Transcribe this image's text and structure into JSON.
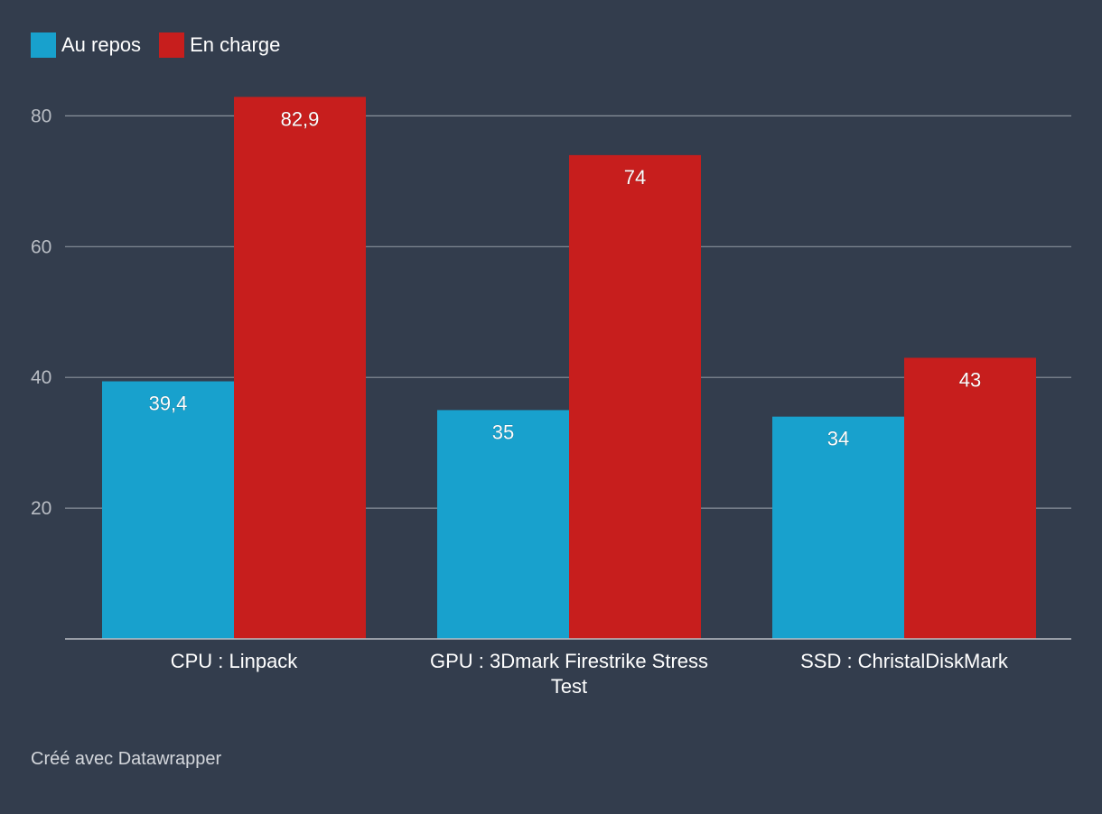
{
  "chart_data": {
    "type": "bar",
    "categories": [
      "CPU : Linpack",
      "GPU : 3Dmark Firestrike Stress Test",
      "SSD : ChristalDiskMark"
    ],
    "category_lines": [
      [
        "CPU : Linpack"
      ],
      [
        "GPU : 3Dmark Firestrike Stress",
        "Test"
      ],
      [
        "SSD : ChristalDiskMark"
      ]
    ],
    "series": [
      {
        "name": "Au repos",
        "values": [
          39.4,
          35,
          34
        ],
        "labels": [
          "39,4",
          "35",
          "34"
        ],
        "color": "#18a1cd"
      },
      {
        "name": "En charge",
        "values": [
          82.9,
          74,
          43
        ],
        "labels": [
          "82,9",
          "74",
          "43"
        ],
        "color": "#c71e1d"
      }
    ],
    "yticks": [
      20,
      40,
      60,
      80
    ],
    "ylim": [
      0,
      85
    ],
    "title": "",
    "xlabel": "",
    "ylabel": "",
    "grid": true,
    "legend_position": "top-left"
  },
  "legend": {
    "items": [
      {
        "label": "Au repos",
        "color": "#18a1cd"
      },
      {
        "label": "En charge",
        "color": "#c71e1d"
      }
    ]
  },
  "footer": {
    "credit": "Créé avec Datawrapper"
  }
}
